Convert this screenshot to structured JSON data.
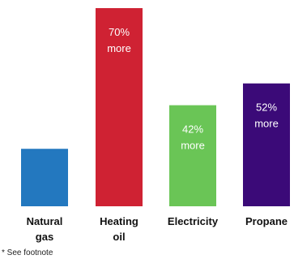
{
  "chart_data": {
    "type": "bar",
    "categories": [
      [
        "Natural",
        "gas"
      ],
      [
        "Heating",
        "oil"
      ],
      [
        "Electricity"
      ],
      [
        "Propane"
      ]
    ],
    "values": [
      29,
      100,
      51,
      62
    ],
    "data_labels": [
      [],
      [
        "70%",
        "more"
      ],
      [
        "42%",
        "more"
      ],
      [
        "52%",
        "more"
      ]
    ],
    "colors": [
      "#2378bf",
      "#cf2233",
      "#6ac556",
      "#3b0a78"
    ],
    "ylim": [
      0,
      100
    ],
    "grid": false,
    "legend": "none"
  },
  "footnote": "* See footnote"
}
